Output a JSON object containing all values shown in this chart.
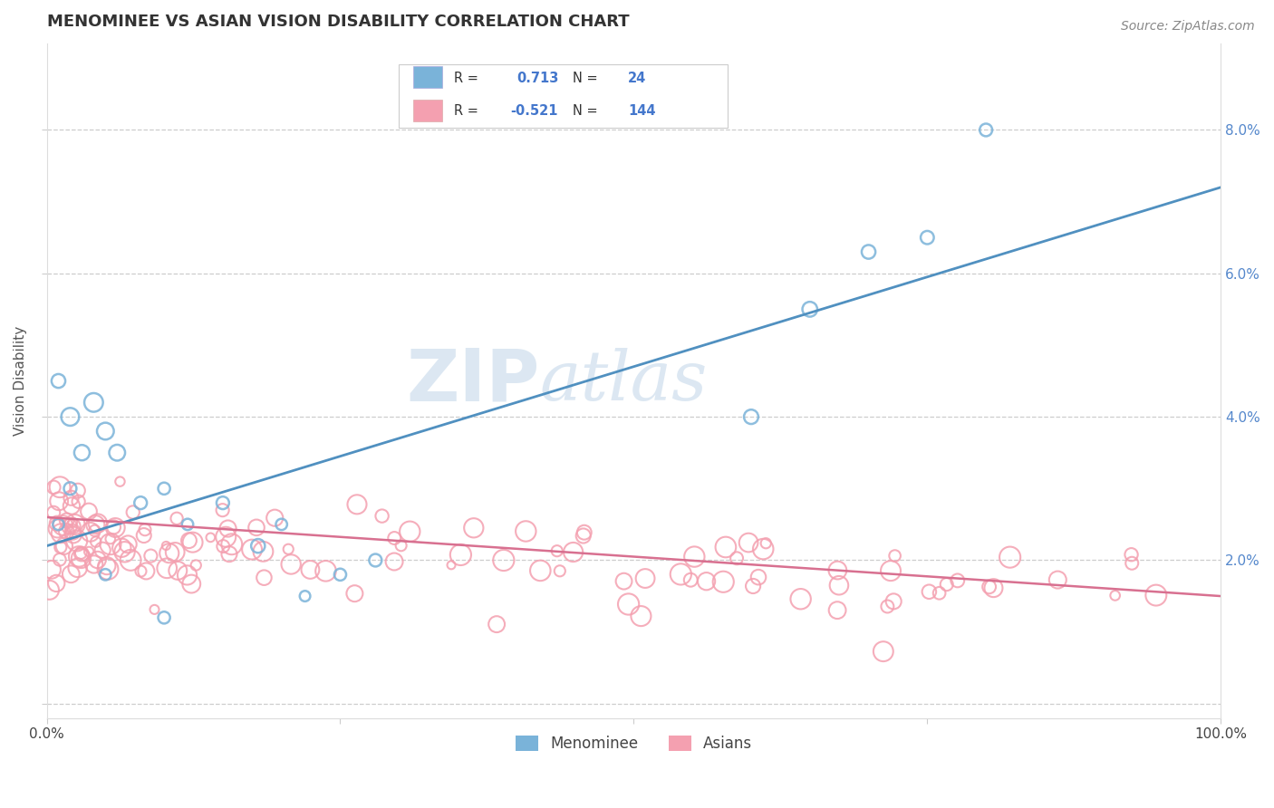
{
  "title": "MENOMINEE VS ASIAN VISION DISABILITY CORRELATION CHART",
  "source": "Source: ZipAtlas.com",
  "ylabel": "Vision Disability",
  "xlim": [
    0.0,
    1.0
  ],
  "ylim": [
    -0.002,
    0.092
  ],
  "yticks": [
    0.0,
    0.02,
    0.04,
    0.06,
    0.08
  ],
  "ytick_labels_right": [
    "",
    "2.0%",
    "4.0%",
    "6.0%",
    "8.0%"
  ],
  "xticks": [
    0.0,
    0.25,
    0.5,
    0.75,
    1.0
  ],
  "xtick_labels": [
    "0.0%",
    "",
    "",
    "",
    "100.0%"
  ],
  "blue_R": 0.713,
  "blue_N": 24,
  "pink_R": -0.521,
  "pink_N": 144,
  "blue_color": "#7ab3d9",
  "pink_color": "#f4a0b0",
  "blue_line_color": "#5090c0",
  "pink_line_color": "#d87090",
  "watermark_zip": "ZIP",
  "watermark_atlas": "atlas",
  "legend_labels": [
    "Menominee",
    "Asians"
  ],
  "background_color": "#ffffff",
  "grid_color": "#c8c8c8",
  "blue_x": [
    0.01,
    0.02,
    0.01,
    0.03,
    0.05,
    0.02,
    0.04,
    0.06,
    0.08,
    0.1,
    0.12,
    0.15,
    0.18,
    0.2,
    0.22,
    0.25,
    0.28,
    0.6,
    0.65,
    0.7,
    0.75,
    0.8,
    0.05,
    0.1
  ],
  "blue_y": [
    0.025,
    0.03,
    0.045,
    0.035,
    0.038,
    0.04,
    0.042,
    0.035,
    0.028,
    0.03,
    0.025,
    0.028,
    0.022,
    0.025,
    0.015,
    0.018,
    0.02,
    0.04,
    0.055,
    0.063,
    0.065,
    0.08,
    0.018,
    0.012
  ],
  "blue_sizes": [
    80,
    100,
    120,
    150,
    180,
    200,
    220,
    160,
    100,
    90,
    80,
    100,
    120,
    80,
    70,
    90,
    100,
    130,
    140,
    120,
    110,
    100,
    80,
    90
  ],
  "blue_line_x0": 0.0,
  "blue_line_x1": 1.0,
  "blue_line_y0": 0.022,
  "blue_line_y1": 0.072,
  "pink_line_x0": 0.0,
  "pink_line_x1": 1.0,
  "pink_line_y0": 0.026,
  "pink_line_y1": 0.015
}
